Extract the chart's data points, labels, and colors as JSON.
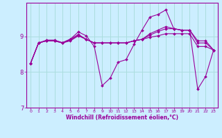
{
  "xlabel": "Windchill (Refroidissement éolien,°C)",
  "background_color": "#cceeff",
  "grid_color": "#aadddd",
  "line_color": "#990099",
  "xlim": [
    -0.5,
    23.5
  ],
  "ylim": [
    7.0,
    9.95
  ],
  "yticks": [
    7,
    8,
    9
  ],
  "xticks": [
    0,
    1,
    2,
    3,
    4,
    5,
    6,
    7,
    8,
    9,
    10,
    11,
    12,
    13,
    14,
    15,
    16,
    17,
    18,
    19,
    20,
    21,
    22,
    23
  ],
  "series": [
    {
      "x": [
        0,
        1,
        2,
        3,
        4,
        5,
        6,
        7,
        8,
        9,
        10,
        11,
        12,
        13,
        14,
        15,
        16,
        17,
        18,
        19,
        20,
        21,
        22,
        23
      ],
      "y": [
        8.25,
        8.82,
        8.9,
        8.9,
        8.83,
        8.93,
        9.13,
        9.02,
        8.72,
        7.62,
        7.83,
        8.28,
        8.35,
        8.78,
        9.18,
        9.55,
        9.62,
        9.75,
        9.22,
        9.18,
        9.18,
        7.52,
        7.88,
        8.62
      ]
    },
    {
      "x": [
        0,
        1,
        2,
        3,
        4,
        5,
        6,
        7,
        8,
        9,
        10,
        11,
        12,
        13,
        14,
        15,
        16,
        17,
        18,
        19,
        20,
        21,
        22,
        23
      ],
      "y": [
        8.25,
        8.82,
        8.88,
        8.88,
        8.82,
        8.88,
        9.02,
        8.92,
        8.82,
        8.82,
        8.82,
        8.82,
        8.82,
        8.88,
        8.92,
        8.98,
        9.02,
        9.08,
        9.08,
        9.08,
        9.08,
        8.72,
        8.72,
        8.62
      ]
    },
    {
      "x": [
        0,
        1,
        2,
        3,
        4,
        5,
        6,
        7,
        8,
        9,
        10,
        11,
        12,
        13,
        14,
        15,
        16,
        17,
        18,
        19,
        20,
        21,
        22,
        23
      ],
      "y": [
        8.25,
        8.82,
        8.88,
        8.88,
        8.82,
        8.9,
        9.04,
        8.92,
        8.82,
        8.82,
        8.82,
        8.82,
        8.82,
        8.88,
        8.92,
        9.04,
        9.14,
        9.22,
        9.22,
        9.18,
        9.18,
        8.82,
        8.82,
        8.62
      ]
    },
    {
      "x": [
        0,
        1,
        2,
        3,
        4,
        5,
        6,
        7,
        8,
        9,
        10,
        11,
        12,
        13,
        14,
        15,
        16,
        17,
        18,
        19,
        20,
        21,
        22,
        23
      ],
      "y": [
        8.25,
        8.82,
        8.88,
        8.88,
        8.82,
        8.92,
        9.06,
        8.92,
        8.82,
        8.82,
        8.82,
        8.82,
        8.82,
        8.88,
        8.92,
        9.08,
        9.18,
        9.28,
        9.22,
        9.18,
        9.18,
        8.88,
        8.88,
        8.62
      ]
    }
  ]
}
